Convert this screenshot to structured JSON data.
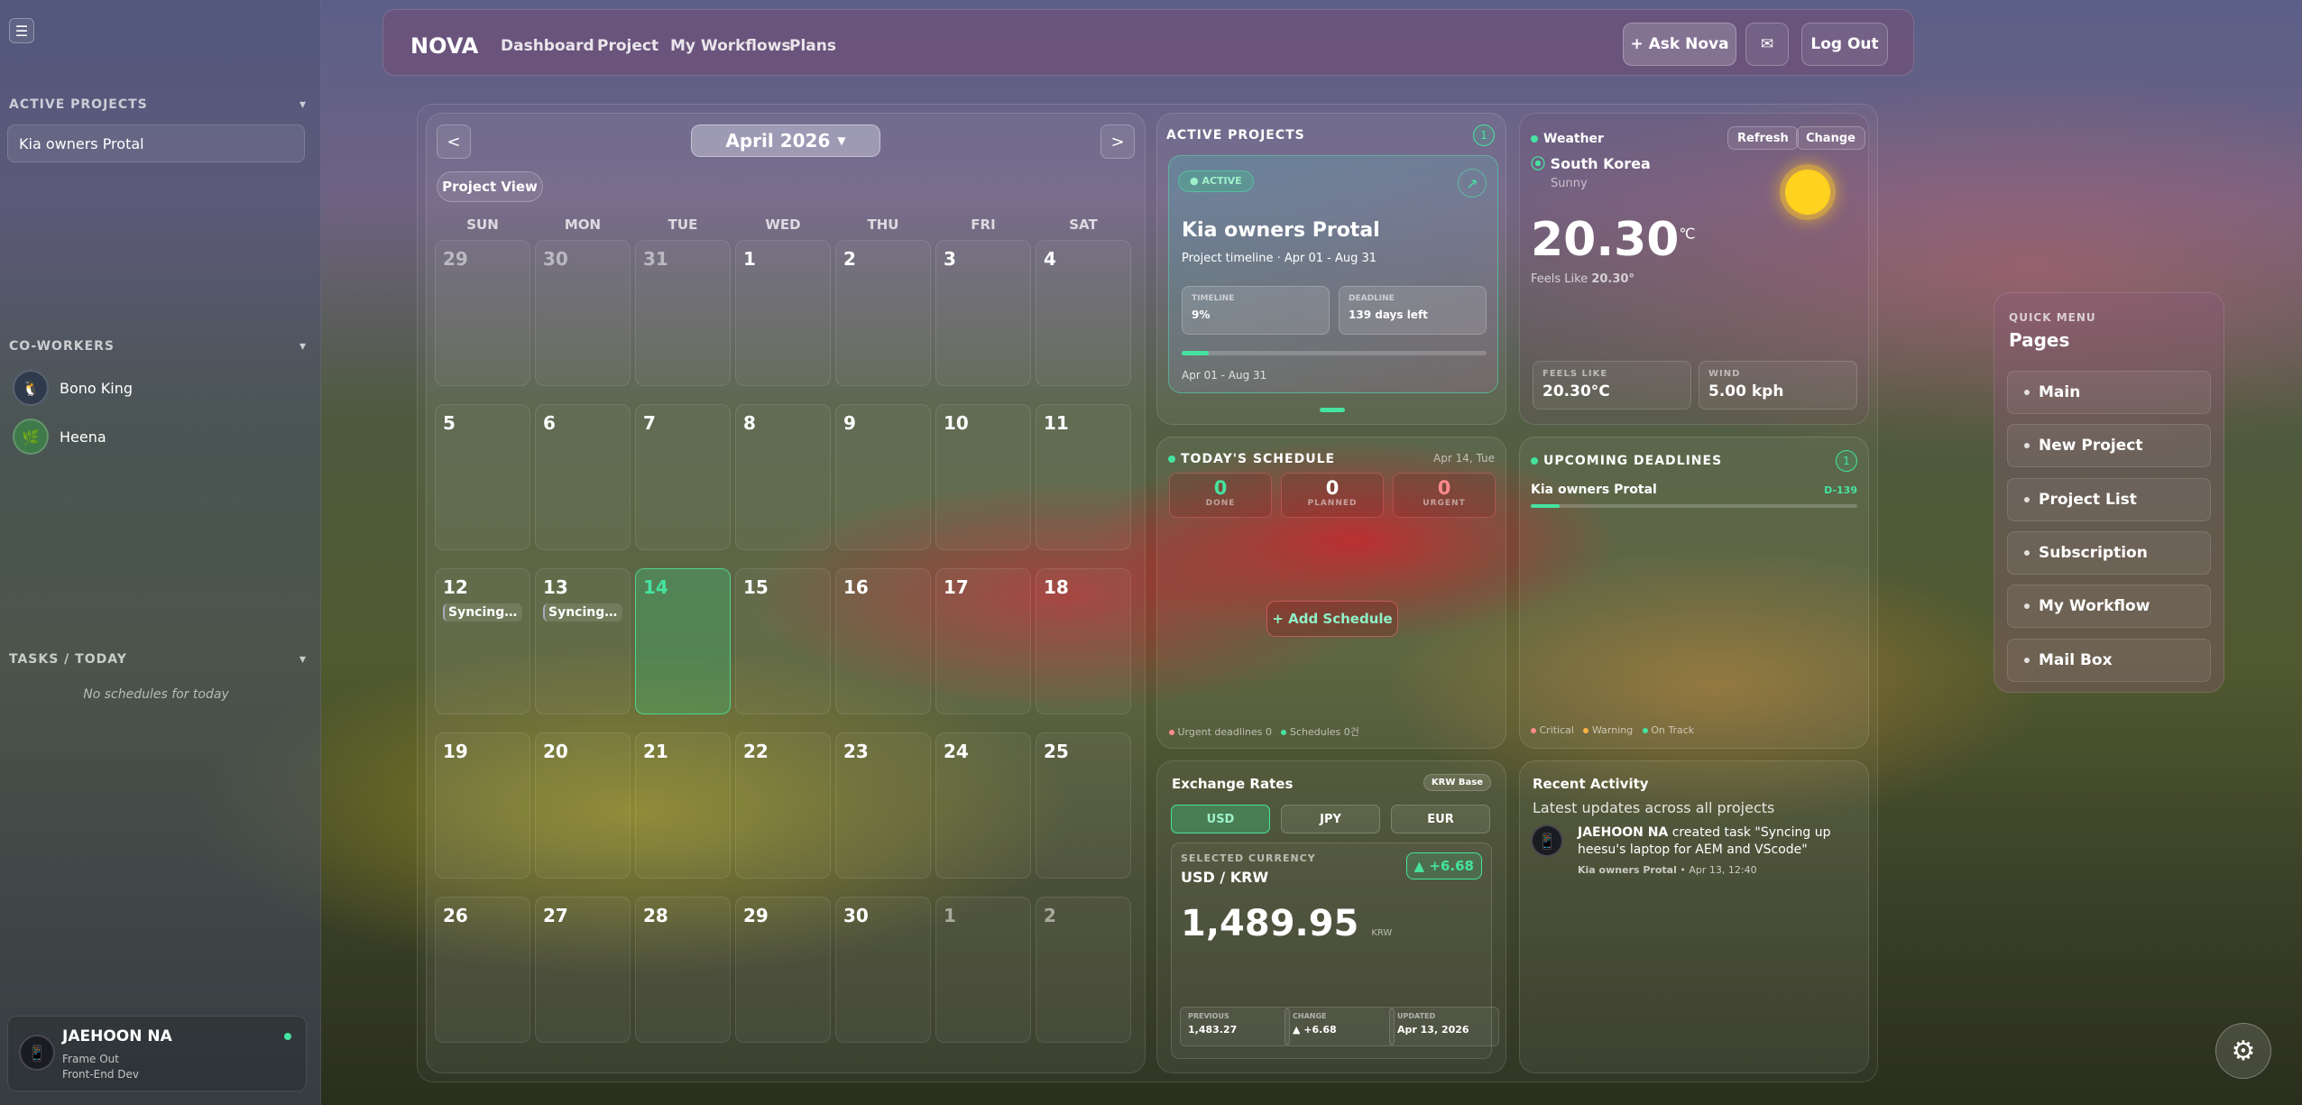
{
  "sidebar": {
    "active_projects_title": "ACTIVE PROJECTS",
    "projects": [
      "Kia owners Protal"
    ],
    "coworkers_title": "CO-WORKERS",
    "coworkers": [
      "Bono King",
      "Heena"
    ],
    "tasks_title": "TASKS / TODAY",
    "no_schedules": "No schedules for today",
    "user": {
      "name": "JAEHOON NA",
      "team": "Frame Out",
      "role": "Front-End Dev"
    }
  },
  "topbar": {
    "logo": "NOVA",
    "nav": [
      "Dashboard",
      "Project",
      "My Workflows",
      "Plans"
    ],
    "ask_nova": "+ Ask Nova",
    "logout": "Log Out"
  },
  "calendar": {
    "prev": "<",
    "next": ">",
    "month": "April 2026",
    "project_view": "Project View",
    "weekdays": [
      "SUN",
      "MON",
      "TUE",
      "WED",
      "THU",
      "FRI",
      "SAT"
    ],
    "weeks": [
      [
        "29",
        "30",
        "31",
        "1",
        "2",
        "3",
        "4"
      ],
      [
        "5",
        "6",
        "7",
        "8",
        "9",
        "10",
        "11"
      ],
      [
        "12",
        "13",
        "14",
        "15",
        "16",
        "17",
        "18"
      ],
      [
        "19",
        "20",
        "21",
        "22",
        "23",
        "24",
        "25"
      ],
      [
        "26",
        "27",
        "28",
        "29",
        "30",
        "1",
        "2"
      ]
    ],
    "events": {
      "12": "Syncing u…",
      "13": "Syncing u…"
    },
    "today": "14"
  },
  "active_projects": {
    "title": "ACTIVE PROJECTS",
    "count": "1",
    "status": "ACTIVE",
    "name": "Kia owners Protal",
    "timeline_text": "Project timeline · Apr 01 - Aug 31",
    "timeline_label": "TIMELINE",
    "timeline_value": "9%",
    "deadline_label": "DEADLINE",
    "deadline_value": "139 days left",
    "progress": 0.09,
    "date_range": "Apr 01 - Aug 31"
  },
  "weather": {
    "title": "Weather",
    "refresh": "Refresh",
    "change": "Change",
    "location": "South Korea",
    "condition": "Sunny",
    "temp": "20.30",
    "unit": "℃",
    "feels_like_text": "Feels Like",
    "feels_like_value": "20.30°",
    "feels_label": "FEELS LIKE",
    "feels_value": "20.30°C",
    "wind_label": "WIND",
    "wind_value": "5.00 kph"
  },
  "schedule": {
    "title": "TODAY'S SCHEDULE",
    "date": "Apr 14, Tue",
    "done": "0",
    "done_label": "DONE",
    "planned": "0",
    "planned_label": "PLANNED",
    "urgent": "0",
    "urgent_label": "URGENT",
    "add": "+ Add Schedule",
    "footer_urgent": "Urgent deadlines 0",
    "footer_schedules": "Schedules 0건"
  },
  "deadlines": {
    "title": "UPCOMING DEADLINES",
    "count": "1",
    "project": "Kia owners Protal",
    "dday": "D-139",
    "legend": [
      "Critical",
      "Warning",
      "On Track"
    ]
  },
  "exchange": {
    "title": "Exchange Rates",
    "base": "KRW Base",
    "tabs": [
      "USD",
      "JPY",
      "EUR"
    ],
    "selected_label": "SELECTED CURRENCY",
    "pair": "USD / KRW",
    "change_badge": "▲ +6.68",
    "rate": "1,489.95",
    "rate_unit": "KRW",
    "previous_label": "PREVIOUS",
    "previous": "1,483.27",
    "change_label": "CHANGE",
    "change": "▲ +6.68",
    "updated_label": "UPDATED",
    "updated": "Apr 13, 2026"
  },
  "activity": {
    "title": "Recent Activity",
    "subtitle": "Latest updates across all projects",
    "user": "JAEHOON NA",
    "text": " created task \"Syncing up heesu's laptop for AEM and VScode\"",
    "project": "Kia owners Protal",
    "time": "• Apr 13, 12:40"
  },
  "quick_menu": {
    "label": "QUICK MENU",
    "title": "Pages",
    "items": [
      "Main",
      "New Project",
      "Project List",
      "Subscription",
      "My Workflow",
      "Mail Box"
    ]
  },
  "colors": {
    "accent": "#45e3a0",
    "urgent": "#ff8a8a",
    "warning": "#f5b342"
  }
}
